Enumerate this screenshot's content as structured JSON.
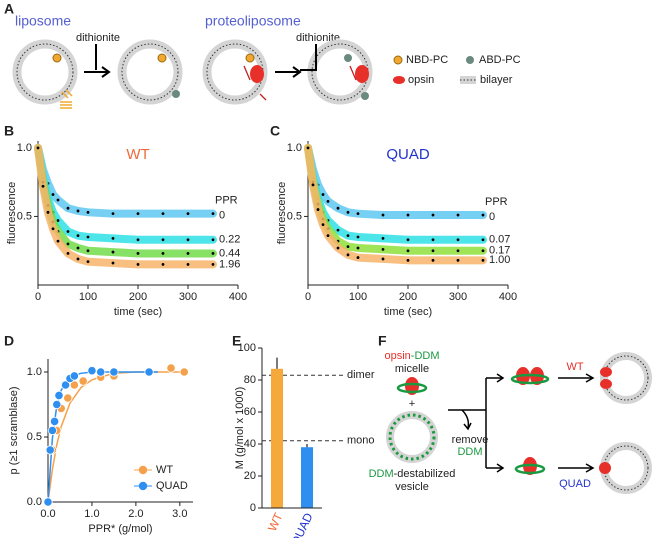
{
  "panel_labels": [
    "A",
    "B",
    "C",
    "D",
    "E",
    "F"
  ],
  "schematic": {
    "liposome": "liposome",
    "proteoliposome": "proteoliposome",
    "reagent": "dithionite",
    "legend": [
      "NBD-PC",
      "ABD-PC",
      "opsin",
      "bilayer"
    ]
  },
  "model": {
    "complex_a": "opsin",
    "complex_b": "-DDM",
    "micelle": "micelle",
    "plus": "+",
    "vesicle_a": "DDM",
    "vesicle_b": "-destabilized",
    "vesicle_c": "vesicle",
    "step_a": "remove",
    "step_b": "DDM",
    "wt": "WT",
    "quad": "QUAD"
  },
  "chart_data": [
    {
      "type": "line",
      "title": "WT",
      "title_color": "#ef6a3a",
      "legend_title": "PPR",
      "xlabel": "time (sec)",
      "ylabel": "fluorescence",
      "x": [
        0,
        10,
        20,
        30,
        40,
        60,
        80,
        100,
        150,
        200,
        250,
        300,
        350
      ],
      "series": [
        {
          "name": "0",
          "color": "#5ec8f2",
          "values": [
            1.0,
            0.84,
            0.74,
            0.66,
            0.62,
            0.56,
            0.54,
            0.53,
            0.52,
            0.52,
            0.52,
            0.52,
            0.52
          ]
        },
        {
          "name": "0.22",
          "color": "#2fe0e6",
          "values": [
            1.0,
            0.78,
            0.63,
            0.53,
            0.47,
            0.39,
            0.36,
            0.35,
            0.34,
            0.33,
            0.33,
            0.33,
            0.33
          ]
        },
        {
          "name": "0.44",
          "color": "#72dc4a",
          "values": [
            1.0,
            0.75,
            0.58,
            0.46,
            0.39,
            0.3,
            0.27,
            0.25,
            0.24,
            0.23,
            0.23,
            0.23,
            0.23
          ]
        },
        {
          "name": "1.96",
          "color": "#f7b46a",
          "values": [
            1.0,
            0.72,
            0.53,
            0.41,
            0.32,
            0.23,
            0.19,
            0.17,
            0.16,
            0.15,
            0.15,
            0.15,
            0.15
          ]
        }
      ],
      "xlim": [
        0,
        400
      ],
      "xticks": [
        0,
        100,
        200,
        300,
        400
      ],
      "ylim": [
        0,
        1.05
      ],
      "yticks": [
        0.5,
        {
          "value": 1,
          "label": "1.0"
        }
      ]
    },
    {
      "type": "line",
      "title": "QUAD",
      "title_color": "#2233cc",
      "legend_title": "PPR",
      "xlabel": "time (sec)",
      "ylabel": "fluorescence",
      "x": [
        0,
        10,
        20,
        30,
        40,
        60,
        80,
        100,
        150,
        200,
        250,
        300,
        350
      ],
      "series": [
        {
          "name": "0",
          "color": "#5ec8f2",
          "values": [
            1.0,
            0.84,
            0.73,
            0.66,
            0.61,
            0.56,
            0.53,
            0.52,
            0.51,
            0.51,
            0.51,
            0.51,
            0.51
          ]
        },
        {
          "name": "0.07",
          "color": "#2fe0e6",
          "values": [
            1.0,
            0.78,
            0.63,
            0.53,
            0.47,
            0.4,
            0.36,
            0.35,
            0.34,
            0.33,
            0.33,
            0.33,
            0.33
          ]
        },
        {
          "name": "0.17",
          "color": "#8fe03a",
          "values": [
            1.0,
            0.75,
            0.59,
            0.48,
            0.41,
            0.32,
            0.28,
            0.27,
            0.26,
            0.25,
            0.25,
            0.25,
            0.25
          ]
        },
        {
          "name": "1.00",
          "color": "#f7b46a",
          "values": [
            1.0,
            0.73,
            0.55,
            0.44,
            0.36,
            0.27,
            0.22,
            0.2,
            0.19,
            0.18,
            0.18,
            0.18,
            0.18
          ]
        }
      ],
      "xlim": [
        0,
        400
      ],
      "xticks": [
        0,
        100,
        200,
        300,
        400
      ],
      "ylim": [
        0,
        1.05
      ],
      "yticks": [
        0.5,
        {
          "value": 1,
          "label": "1.0"
        }
      ]
    },
    {
      "type": "scatter",
      "xlabel": "PPR* (g/mol)",
      "ylabel": "p (≥1 scramblase)",
      "series": [
        {
          "name": "WT",
          "color": "#f5a04a",
          "x": [
            0,
            0.1,
            0.2,
            0.3,
            0.45,
            0.6,
            0.8,
            1.2,
            1.5,
            2.8,
            3.1
          ],
          "values": [
            0,
            0.4,
            0.55,
            0.72,
            0.8,
            0.9,
            0.93,
            0.96,
            0.97,
            1.03,
            1.0
          ],
          "fit_x": [
            0,
            0.1,
            0.2,
            0.3,
            0.5,
            0.75,
            1,
            1.5,
            2,
            2.5,
            3.1
          ],
          "fit": [
            0,
            0.25,
            0.44,
            0.58,
            0.76,
            0.88,
            0.94,
            0.99,
            1.0,
            1.0,
            1.0
          ]
        },
        {
          "name": "QUAD",
          "color": "#2f8ff0",
          "x": [
            0,
            0.05,
            0.1,
            0.15,
            0.2,
            0.25,
            0.4,
            0.5,
            0.6,
            1.0,
            1.2,
            1.5,
            2.3
          ],
          "values": [
            0,
            0.4,
            0.55,
            0.62,
            0.75,
            0.82,
            0.9,
            0.95,
            0.97,
            1.01,
            1.0,
            1.0,
            1.0
          ],
          "fit_x": [
            0,
            0.1,
            0.2,
            0.3,
            0.5,
            0.75,
            1,
            1.5,
            2,
            2.5
          ],
          "fit": [
            0,
            0.49,
            0.74,
            0.86,
            0.96,
            0.99,
            1.0,
            1.0,
            1.0,
            1.0
          ]
        }
      ],
      "xlim": [
        0,
        3.3
      ],
      "xticks": [
        {
          "value": 0,
          "label": "0.0"
        },
        {
          "value": 1,
          "label": "1.0"
        },
        {
          "value": 2,
          "label": "2.0"
        },
        {
          "value": 3,
          "label": "3.0"
        }
      ],
      "ylim": [
        0,
        1.1
      ],
      "yticks": [
        {
          "value": 0,
          "label": "0.0"
        },
        0.5,
        {
          "value": 1,
          "label": "1.0"
        }
      ],
      "legend": "lower right"
    },
    {
      "type": "bar",
      "ylabel": "M (g/mol x 1000)",
      "categories": [
        "WT",
        "QUAD"
      ],
      "values": [
        87,
        38
      ],
      "errors": [
        7,
        2
      ],
      "colors": [
        "#f5a93a",
        "#2f8ff0"
      ],
      "label_colors": [
        "#ef6a3a",
        "#2233cc"
      ],
      "ylim": [
        0,
        100
      ],
      "yticks": [
        0,
        20,
        40,
        60,
        80,
        100
      ],
      "reference_lines": [
        {
          "value": 83,
          "label": "dimer"
        },
        {
          "value": 42,
          "label": "mono"
        }
      ]
    }
  ]
}
